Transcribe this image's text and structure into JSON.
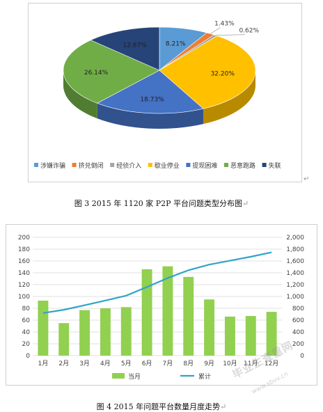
{
  "chart_data": [
    {
      "type": "pie",
      "categories": [
        "涉嫌诈骗",
        "挤兑倒闭",
        "经侦介入",
        "歇业停业",
        "提现困难",
        "恶意跑路",
        "失联"
      ],
      "values": [
        8.21,
        1.43,
        0.62,
        32.2,
        18.73,
        26.14,
        12.67
      ],
      "labels": [
        "8.21%",
        "1.43%",
        "0.62%",
        "32.20%",
        "18.73%",
        "26.14%",
        "12.67%"
      ],
      "colors": [
        "#5B9BD5",
        "#ED7D31",
        "#A5A5A5",
        "#FFC000",
        "#4472C4",
        "#70AD47",
        "#264478"
      ],
      "legend_position": "bottom",
      "style": "3d"
    },
    {
      "type": "bar",
      "categories": [
        "1月",
        "2月",
        "3月",
        "4月",
        "5月",
        "6月",
        "7月",
        "8月",
        "9月",
        "10月",
        "11月",
        "12月"
      ],
      "series": [
        {
          "name": "当月",
          "type": "bar",
          "axis": "left",
          "color": "#92D050",
          "values": [
            93,
            55,
            77,
            80,
            82,
            146,
            151,
            133,
            95,
            66,
            67,
            74
          ]
        },
        {
          "name": "累计",
          "type": "line",
          "axis": "right",
          "color": "#2FA4C6",
          "values": [
            720,
            775,
            852,
            932,
            1014,
            1160,
            1311,
            1444,
            1539,
            1605,
            1672,
            1746
          ]
        }
      ],
      "ylim_left": [
        0,
        200
      ],
      "yticks_left": [
        "0",
        "20",
        "40",
        "60",
        "80",
        "100",
        "120",
        "140",
        "160",
        "180",
        "200"
      ],
      "ylim_right": [
        0,
        2000
      ],
      "yticks_right": [
        "0",
        "200",
        "400",
        "600",
        "800",
        "1,000",
        "1,200",
        "1,400",
        "1,600",
        "1,800",
        "2,000"
      ],
      "grid": true,
      "legend_position": "bottom"
    }
  ],
  "captions": {
    "fig3": "图 3 2015 年 1120 家 P2P 平台问题类型分布图",
    "fig4": "图 4 2015 年问题平台数量月度走势"
  },
  "watermark": {
    "text": "毕业生查重网",
    "url": "www.sbvv.cn"
  }
}
